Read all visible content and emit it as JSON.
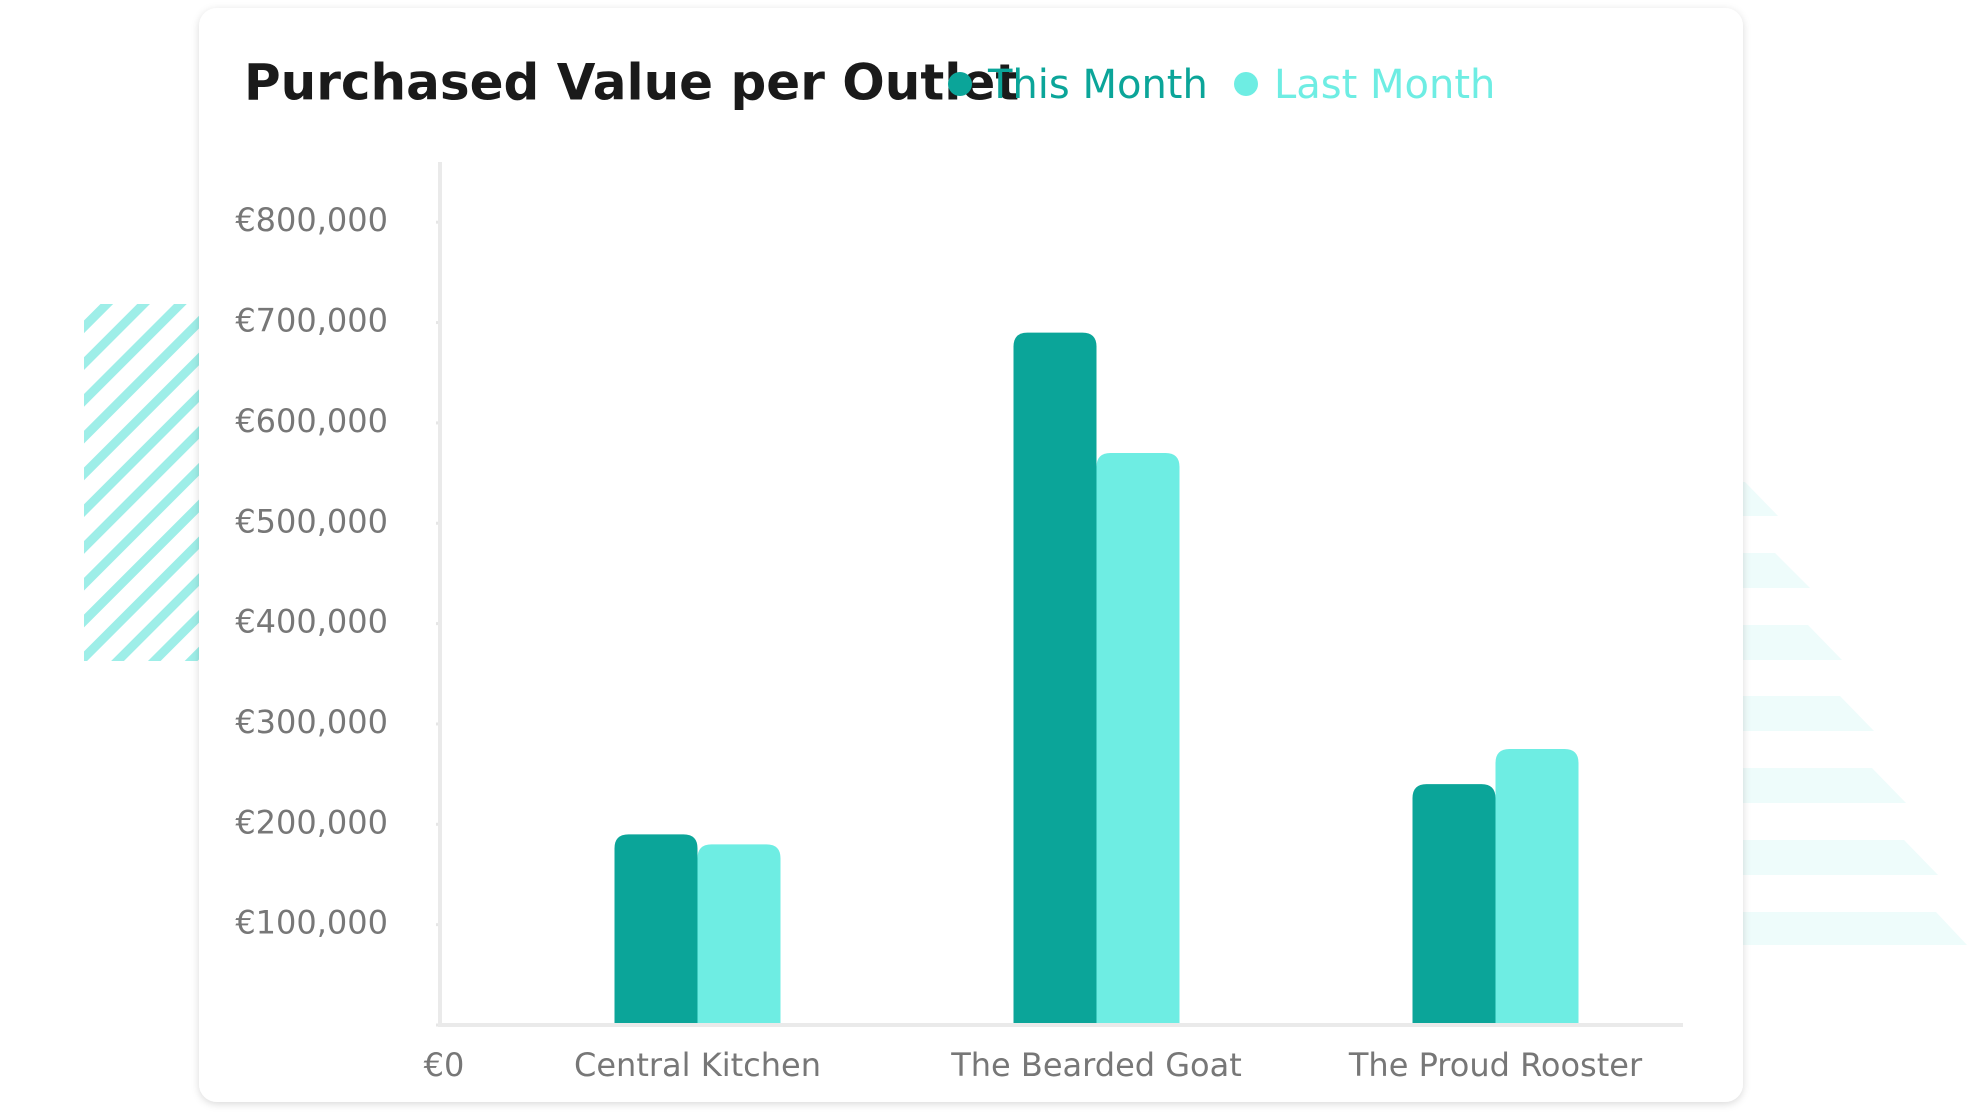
{
  "chart_data": {
    "type": "bar",
    "title": "Purchased Value per Outlet",
    "categories": [
      "Central Kitchen",
      "The Bearded Goat",
      "The Proud Rooster"
    ],
    "series": [
      {
        "name": "This Month",
        "color": "#0ba599",
        "values": [
          190000,
          690000,
          240000
        ]
      },
      {
        "name": "Last Month",
        "color": "#6eede3",
        "values": [
          180000,
          570000,
          275000
        ]
      }
    ],
    "ylim": [
      0,
      860000
    ],
    "yticks": [
      {
        "value": 0,
        "label": "€0"
      },
      {
        "value": 100000,
        "label": "€100,000"
      },
      {
        "value": 200000,
        "label": "€200,000"
      },
      {
        "value": 300000,
        "label": "€300,000"
      },
      {
        "value": 400000,
        "label": "€400,000"
      },
      {
        "value": 500000,
        "label": "€500,000"
      },
      {
        "value": 600000,
        "label": "€600,000"
      },
      {
        "value": 700000,
        "label": "€700,000"
      },
      {
        "value": 800000,
        "label": "€800,000"
      }
    ],
    "legend": "top"
  }
}
